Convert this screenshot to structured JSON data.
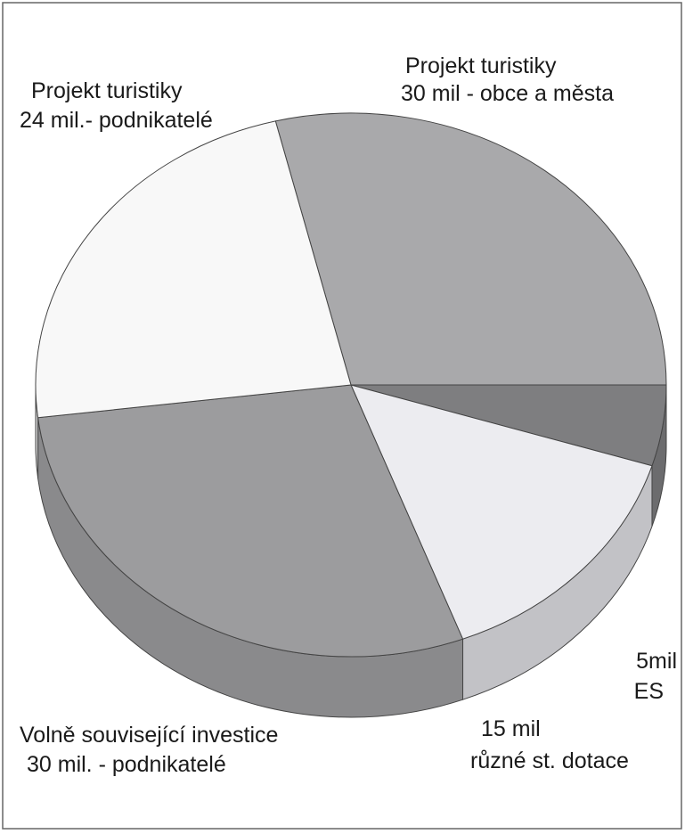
{
  "chart_data": {
    "type": "pie3d",
    "labels": [
      [
        "Projekt turistiky",
        "30 mil - obce a města"
      ],
      [
        "5mil",
        "ES"
      ],
      [
        "15 mil",
        "různé st. dotace"
      ],
      [
        "Volně související investice",
        "30 mil. - podnikatelé"
      ],
      [
        "Projekt turistiky",
        "24 mil.- podnikatelé"
      ]
    ],
    "values": [
      30,
      5,
      15,
      30,
      24
    ],
    "colors": [
      "#a9a9ab",
      "#7e7e80",
      "#ececf0",
      "#9c9c9e",
      "#f8f8f8"
    ],
    "side_colors": [
      "#8c8c8e",
      "#6c6c6e",
      "#c2c2c6",
      "#8a8a8c",
      "#d0d0d0"
    ]
  }
}
